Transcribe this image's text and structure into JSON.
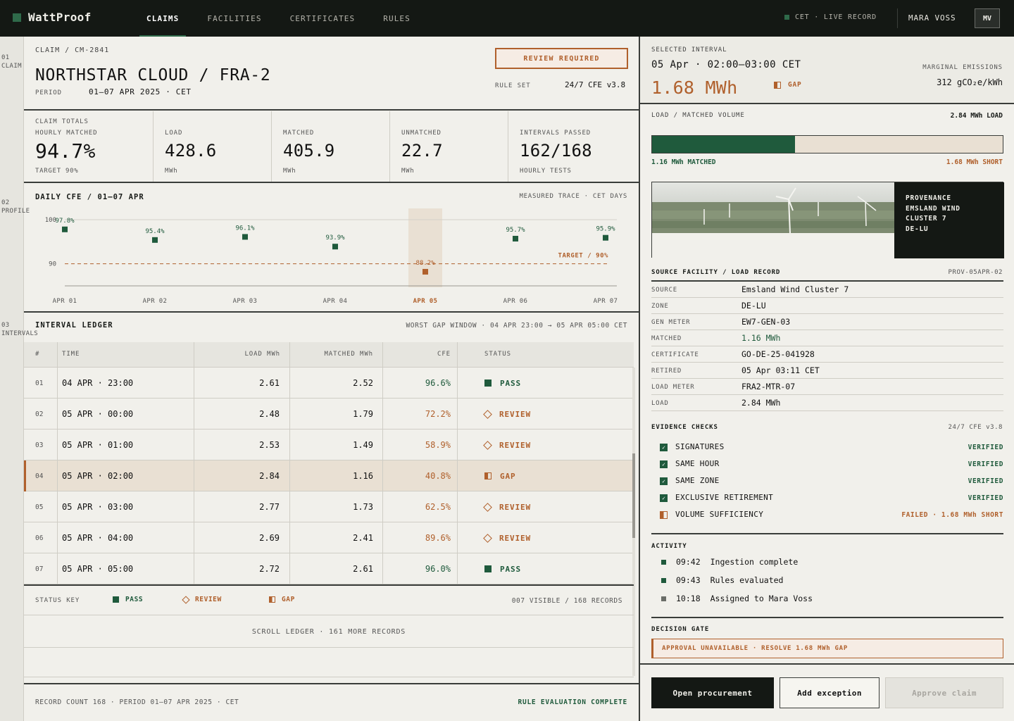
{
  "app": {
    "name": "WattProof"
  },
  "nav": {
    "tabs": [
      "CLAIMS",
      "FACILITIES",
      "CERTIFICATES",
      "RULES"
    ]
  },
  "topbar": {
    "status": "CET · LIVE RECORD",
    "user": "MARA VOSS",
    "initials": "MV"
  },
  "gutter": [
    "01\nCLAIM",
    "02\nPROFILE",
    "03\nINTERVALS"
  ],
  "claim": {
    "id": "CLAIM / CM-2841",
    "title": "NORTHSTAR CLOUD / FRA-2",
    "period_label": "PERIOD",
    "period": "01–07 APR 2025 · CET",
    "badge": "REVIEW REQUIRED",
    "ruleset_label": "RULE SET",
    "ruleset": "24/7 CFE v3.8"
  },
  "totals": {
    "section": "CLAIM TOTALS",
    "cells": [
      {
        "label": "HOURLY MATCHED",
        "value": "94.7%",
        "sub": "TARGET 90%"
      },
      {
        "label": "LOAD",
        "value": "428.6",
        "sub": "MWh"
      },
      {
        "label": "MATCHED",
        "value": "405.9",
        "sub": "MWh"
      },
      {
        "label": "UNMATCHED",
        "value": "22.7",
        "sub": "MWh"
      },
      {
        "label": "INTERVALS PASSED",
        "value": "162/168",
        "sub": "HOURLY TESTS"
      }
    ]
  },
  "chart_data": {
    "type": "scatter",
    "title": "DAILY CFE / 01–07 APR",
    "note": "MEASURED TRACE · CET DAYS",
    "categories": [
      "APR 01",
      "APR 02",
      "APR 03",
      "APR 04",
      "APR 05",
      "APR 06",
      "APR 07"
    ],
    "values": [
      97.8,
      95.4,
      96.1,
      93.9,
      88.2,
      95.7,
      95.9
    ],
    "labels": [
      "97.8%",
      "95.4%",
      "96.1%",
      "93.9%",
      "88.2%",
      "95.7%",
      "95.9%"
    ],
    "highlight": "APR 05",
    "y_ticks": [
      "100",
      "90"
    ],
    "ylim": [
      85,
      100
    ],
    "target": 90,
    "target_label": "TARGET / 90%",
    "colors": {
      "normal": "#1f5a3c",
      "below": "#b0602c"
    }
  },
  "ledger": {
    "title": "INTERVAL LEDGER",
    "note": "WORST GAP WINDOW · 04 APR 23:00 → 05 APR 05:00 CET",
    "headers": [
      "#",
      "TIME",
      "LOAD MWh",
      "MATCHED MWh",
      "CFE",
      "STATUS"
    ],
    "rows": [
      {
        "idx": "01",
        "time": "04 APR · 23:00",
        "load": "2.61",
        "matched": "2.52",
        "cfe": "96.6%",
        "status": "PASS",
        "kind": "pass"
      },
      {
        "idx": "02",
        "time": "05 APR · 00:00",
        "load": "2.48",
        "matched": "1.79",
        "cfe": "72.2%",
        "status": "REVIEW",
        "kind": "review"
      },
      {
        "idx": "03",
        "time": "05 APR · 01:00",
        "load": "2.53",
        "matched": "1.49",
        "cfe": "58.9%",
        "status": "REVIEW",
        "kind": "review"
      },
      {
        "idx": "04",
        "time": "05 APR · 02:00",
        "load": "2.84",
        "matched": "1.16",
        "cfe": "40.8%",
        "status": "GAP",
        "kind": "gap"
      },
      {
        "idx": "05",
        "time": "05 APR · 03:00",
        "load": "2.77",
        "matched": "1.73",
        "cfe": "62.5%",
        "status": "REVIEW",
        "kind": "review"
      },
      {
        "idx": "06",
        "time": "05 APR · 04:00",
        "load": "2.69",
        "matched": "2.41",
        "cfe": "89.6%",
        "status": "REVIEW",
        "kind": "review"
      },
      {
        "idx": "07",
        "time": "05 APR · 05:00",
        "load": "2.72",
        "matched": "2.61",
        "cfe": "96.0%",
        "status": "PASS",
        "kind": "pass"
      }
    ],
    "selected_row": 3,
    "key_label": "STATUS KEY",
    "key": [
      "PASS",
      "REVIEW",
      "GAP"
    ],
    "count": "007 VISIBLE / 168 RECORDS",
    "scroll_more": "SCROLL LEDGER · 161 MORE RECORDS"
  },
  "footer": {
    "left": "RECORD COUNT 168 · PERIOD 01–07 APR 2025 · CET",
    "right": "RULE EVALUATION COMPLETE"
  },
  "selected": {
    "label": "SELECTED INTERVAL",
    "time": "05 Apr · 02:00–03:00 CET",
    "volume": "1.68 MWh",
    "gap": "GAP",
    "marginal_label": "MARGINAL EMISSIONS",
    "marginal_value": "312 gCO₂e/kWh"
  },
  "load_matched": {
    "title": "LOAD / MATCHED VOLUME",
    "load": "2.84 MWh LOAD",
    "matched_fraction": 0.408,
    "matched_label": "1.16 MWh MATCHED",
    "short_label": "1.68 MWh SHORT"
  },
  "provenance": {
    "text": "PROVENANCE\nEMSLAND WIND\nCLUSTER 7\nDE-LU"
  },
  "source": {
    "title": "SOURCE FACILITY / LOAD RECORD",
    "id": "PROV-05APR-02",
    "rows": [
      {
        "k": "SOURCE",
        "v": "Emsland Wind Cluster 7"
      },
      {
        "k": "ZONE",
        "v": "DE-LU"
      },
      {
        "k": "GEN METER",
        "v": "EW7-GEN-03"
      },
      {
        "k": "MATCHED",
        "v": "1.16 MWh"
      },
      {
        "k": "CERTIFICATE",
        "v": "GO-DE-25-041928"
      },
      {
        "k": "RETIRED",
        "v": "05 Apr 03:11 CET"
      },
      {
        "k": "LOAD METER",
        "v": "FRA2-MTR-07"
      },
      {
        "k": "LOAD",
        "v": "2.84 MWh"
      }
    ]
  },
  "evidence": {
    "title": "EVIDENCE CHECKS",
    "version": "24/7 CFE v3.8",
    "checks": [
      {
        "name": "SIGNATURES",
        "status": "VERIFIED",
        "ok": true
      },
      {
        "name": "SAME HOUR",
        "status": "VERIFIED",
        "ok": true
      },
      {
        "name": "SAME ZONE",
        "status": "VERIFIED",
        "ok": true
      },
      {
        "name": "EXCLUSIVE RETIREMENT",
        "status": "VERIFIED",
        "ok": true
      },
      {
        "name": "VOLUME SUFFICIENCY",
        "status": "FAILED · 1.68 MWh SHORT",
        "ok": false
      }
    ]
  },
  "activity": {
    "title": "ACTIVITY",
    "items": [
      {
        "time": "09:42",
        "text": "Ingestion complete",
        "color": "#1f5a3c"
      },
      {
        "time": "09:43",
        "text": "Rules evaluated",
        "color": "#1f5a3c"
      },
      {
        "time": "10:18",
        "text": "Assigned to Mara Voss",
        "color": "#6a6d68"
      }
    ]
  },
  "decision": {
    "title": "DECISION GATE",
    "banner": "APPROVAL UNAVAILABLE · RESOLVE 1.68 MWh GAP",
    "buttons": {
      "procure": "Open procurement",
      "exception": "Add exception",
      "approve": "Approve claim"
    }
  }
}
